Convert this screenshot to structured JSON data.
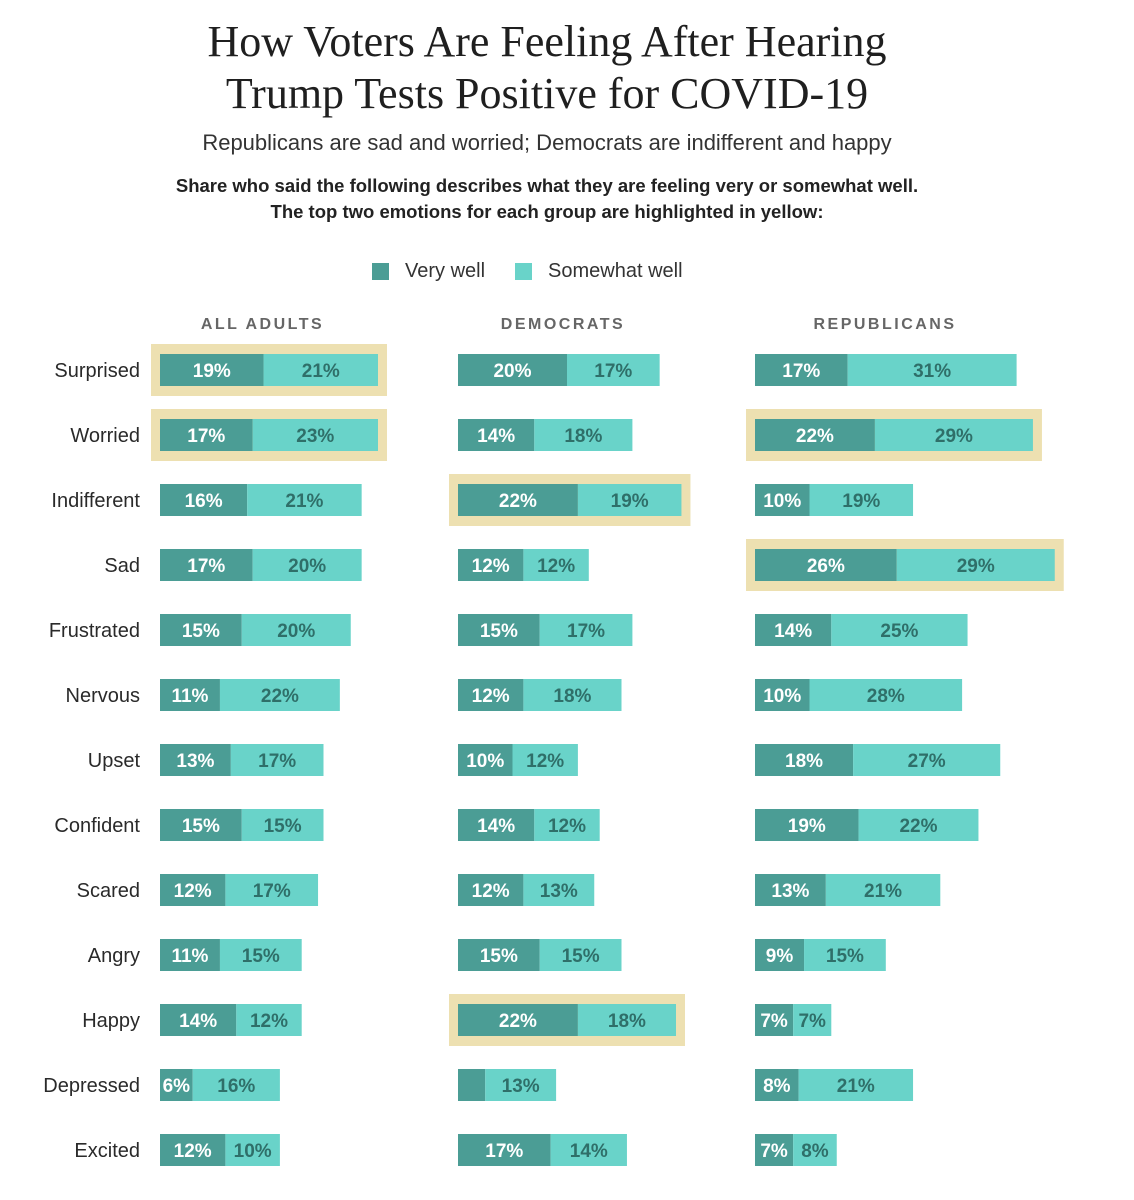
{
  "title_line1": "How Voters Are Feeling After Hearing",
  "title_line2": "Trump Tests Positive for COVID-19",
  "subtitle": "Republicans are sad and worried; Democrats are indifferent and happy",
  "note_line1": "Share who said the following describes what they are feeling very or somewhat well.",
  "note_line2": "The top two emotions for each group are highlighted in yellow:",
  "colors": {
    "very_well": "#4b9d95",
    "somewhat_well": "#69d3c9",
    "highlight": "#ede0b1",
    "label_on_light": "#2f6f69"
  },
  "chart_data": {
    "type": "bar",
    "stacked": true,
    "orientation": "horizontal",
    "legend": [
      "Very well",
      "Somewhat well"
    ],
    "legend_position": "top",
    "categories": [
      "Surprised",
      "Worried",
      "Indifferent",
      "Sad",
      "Frustrated",
      "Nervous",
      "Upset",
      "Confident",
      "Scared",
      "Angry",
      "Happy",
      "Depressed",
      "Excited"
    ],
    "groups": [
      {
        "name": "ALL ADULTS",
        "very_well": [
          19,
          17,
          16,
          17,
          15,
          11,
          13,
          15,
          12,
          11,
          14,
          6,
          12
        ],
        "somewhat_well": [
          21,
          23,
          21,
          20,
          20,
          22,
          17,
          15,
          17,
          15,
          12,
          16,
          10
        ],
        "very_well_labels": [
          "19%",
          "17%",
          "16%",
          "17%",
          "15%",
          "11%",
          "13%",
          "15%",
          "12%",
          "11%",
          "14%",
          "6%",
          "12%"
        ],
        "somewhat_well_labels": [
          "21%",
          "23%",
          "21%",
          "20%",
          "20%",
          "22%",
          "17%",
          "15%",
          "17%",
          "15%",
          "12%",
          "16%",
          "10%"
        ],
        "highlighted": [
          "Surprised",
          "Worried"
        ]
      },
      {
        "name": "DEMOCRATS",
        "very_well": [
          20,
          14,
          22,
          12,
          15,
          12,
          10,
          14,
          12,
          15,
          22,
          5,
          17
        ],
        "somewhat_well": [
          17,
          18,
          19,
          12,
          17,
          18,
          12,
          12,
          13,
          15,
          18,
          13,
          14
        ],
        "very_well_labels": [
          "20%",
          "14%",
          "22%",
          "12%",
          "15%",
          "12%",
          "10%",
          "14%",
          "12%",
          "15%",
          "22%",
          "",
          "17%"
        ],
        "somewhat_well_labels": [
          "17%",
          "18%",
          "19%",
          "12%",
          "17%",
          "18%",
          "12%",
          "12%",
          "13%",
          "15%",
          "18%",
          "13%",
          "14%"
        ],
        "highlighted": [
          "Indifferent",
          "Happy"
        ]
      },
      {
        "name": "REPUBLICANS",
        "very_well": [
          17,
          22,
          10,
          26,
          14,
          10,
          18,
          19,
          13,
          9,
          7,
          8,
          7
        ],
        "somewhat_well": [
          31,
          29,
          19,
          29,
          25,
          28,
          27,
          22,
          21,
          15,
          7,
          21,
          8
        ],
        "very_well_labels": [
          "17%",
          "22%",
          "10%",
          "26%",
          "14%",
          "10%",
          "18%",
          "19%",
          "13%",
          "9%",
          "7%",
          "8%",
          "7%"
        ],
        "somewhat_well_labels": [
          "31%",
          "29%",
          "19%",
          "29%",
          "25%",
          "28%",
          "27%",
          "22%",
          "21%",
          "15%",
          "7%",
          "21%",
          "8%"
        ],
        "highlighted": [
          "Worried",
          "Sad"
        ]
      }
    ]
  }
}
